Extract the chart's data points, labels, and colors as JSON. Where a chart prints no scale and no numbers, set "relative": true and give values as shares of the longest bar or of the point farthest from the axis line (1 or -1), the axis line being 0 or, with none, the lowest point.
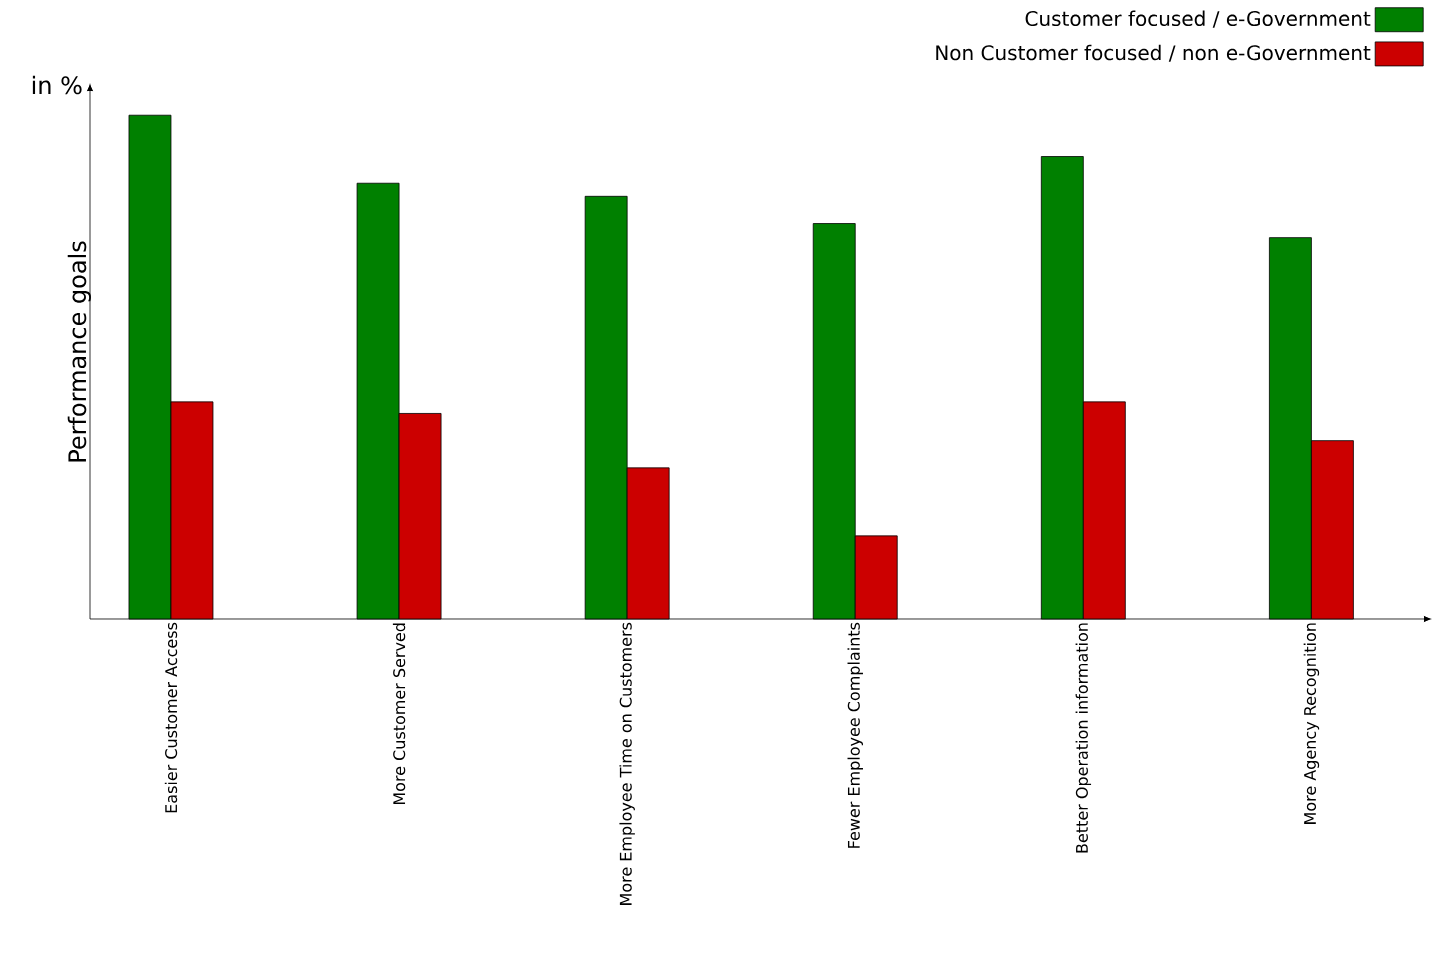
{
  "chart_data": {
    "type": "bar",
    "relative": true,
    "ylabel": "Performance goals",
    "annotations": [
      "in %"
    ],
    "categories": [
      "Easier Customer Access",
      "More Customer Served",
      "More Employee Time on Customers",
      "Fewer Employee Complaints",
      "Better Operation information",
      "More Agency Recognition"
    ],
    "series": [
      {
        "name": "Customer focused / e-Government",
        "color": "#008000",
        "values": [
          1,
          0.865,
          0.839,
          0.785,
          0.918,
          0.757
        ]
      },
      {
        "name": "Non Customer focused / non e-Government",
        "color": "#cc0000",
        "values": [
          0.431,
          0.408,
          0.3,
          0.165,
          0.431,
          0.354
        ]
      }
    ],
    "legend": "top right"
  }
}
